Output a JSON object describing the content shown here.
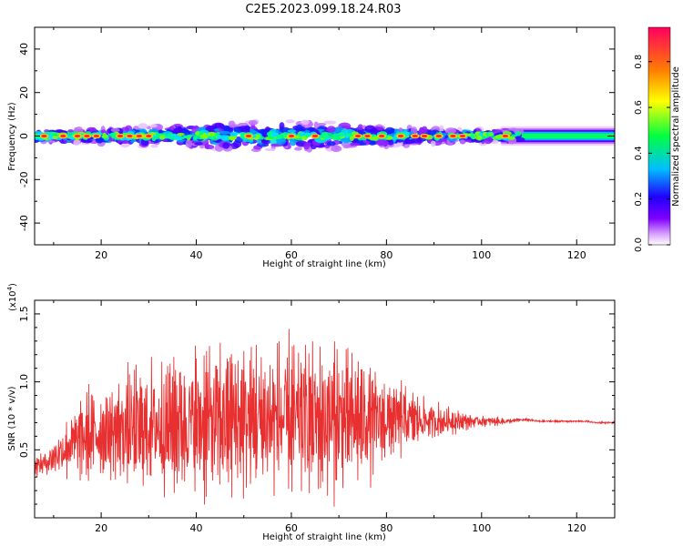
{
  "figure": {
    "title": "C2E5.2023.099.18.24.R03"
  },
  "chart_data": [
    {
      "type": "heatmap",
      "xlabel": "Height of straight line (km)",
      "ylabel": "Frequency (Hz)",
      "xlim": [
        6,
        128
      ],
      "ylim": [
        -50,
        50
      ],
      "xticks": [
        20,
        40,
        60,
        80,
        100,
        120
      ],
      "yticks": [
        -40,
        -20,
        0,
        20,
        40
      ],
      "colorbar": {
        "label": "Normalized spectral amplitude",
        "range": [
          0,
          0.95
        ],
        "ticks": [
          0.0,
          0.2,
          0.4,
          0.6,
          0.8
        ],
        "tick_labels": [
          "0.0",
          "0.2",
          "0.4",
          "0.6",
          "0.8"
        ],
        "colormap": "rainbow"
      },
      "band": {
        "center_freq_hz": 0,
        "half_width_hz": 4,
        "noisy_range_km": [
          6,
          108
        ],
        "smooth_range_km": [
          108,
          128
        ]
      },
      "peaks_km": [
        8,
        12,
        15,
        17,
        19,
        24,
        26,
        28,
        30,
        51,
        60,
        65,
        74,
        76,
        79,
        83,
        86,
        88,
        91,
        94,
        96,
        105
      ]
    },
    {
      "type": "line",
      "xlabel": "Height of straight line (km)",
      "ylabel": "SNR (10 * v/v)",
      "scale_label": "(x10",
      "scale_exp": "4",
      "scale_close": ")",
      "xlim": [
        6,
        128
      ],
      "ylim": [
        0,
        1.6
      ],
      "xticks": [
        20,
        40,
        60,
        80,
        100,
        120
      ],
      "yticks": [
        0.5,
        1.0,
        1.5
      ],
      "ytick_labels": [
        "0.5",
        "1.0",
        "1.5"
      ],
      "series_color": "#e83030",
      "series": [
        {
          "x": [
            6,
            8,
            10,
            12,
            14,
            16,
            18,
            20,
            22,
            24,
            26,
            28,
            30,
            32,
            34,
            36,
            38,
            40,
            42,
            44,
            46,
            48,
            50,
            52,
            54,
            56,
            58,
            60,
            62,
            64,
            66,
            68,
            70,
            72,
            74,
            76,
            78,
            80,
            82,
            84,
            86,
            88,
            90,
            92,
            94,
            96,
            98,
            100,
            102,
            104,
            106,
            108,
            110,
            112,
            114,
            116,
            118,
            120,
            122,
            124,
            126,
            128
          ],
          "y_center": [
            0.38,
            0.4,
            0.45,
            0.5,
            0.55,
            0.58,
            0.6,
            0.62,
            0.63,
            0.64,
            0.65,
            0.66,
            0.67,
            0.68,
            0.69,
            0.7,
            0.7,
            0.71,
            0.71,
            0.72,
            0.72,
            0.72,
            0.72,
            0.72,
            0.72,
            0.72,
            0.72,
            0.72,
            0.72,
            0.72,
            0.72,
            0.72,
            0.72,
            0.72,
            0.72,
            0.72,
            0.72,
            0.72,
            0.72,
            0.72,
            0.72,
            0.72,
            0.71,
            0.71,
            0.71,
            0.71,
            0.71,
            0.71,
            0.71,
            0.71,
            0.71,
            0.72,
            0.72,
            0.71,
            0.71,
            0.71,
            0.71,
            0.71,
            0.71,
            0.7,
            0.7,
            0.7
          ],
          "y_amplitude": [
            0.1,
            0.15,
            0.22,
            0.3,
            0.38,
            0.45,
            0.5,
            0.52,
            0.55,
            0.6,
            0.62,
            0.65,
            0.68,
            0.72,
            0.78,
            0.82,
            0.82,
            0.82,
            0.82,
            0.82,
            0.82,
            0.84,
            0.86,
            0.86,
            0.86,
            0.86,
            0.86,
            0.86,
            0.86,
            0.86,
            0.86,
            0.84,
            0.8,
            0.75,
            0.7,
            0.62,
            0.55,
            0.48,
            0.42,
            0.36,
            0.3,
            0.25,
            0.2,
            0.18,
            0.14,
            0.1,
            0.08,
            0.06,
            0.05,
            0.04,
            0.03,
            0.02,
            0.015,
            0.012,
            0.01,
            0.01,
            0.01,
            0.01,
            0.01,
            0.01,
            0.01,
            0.01
          ]
        }
      ]
    }
  ]
}
